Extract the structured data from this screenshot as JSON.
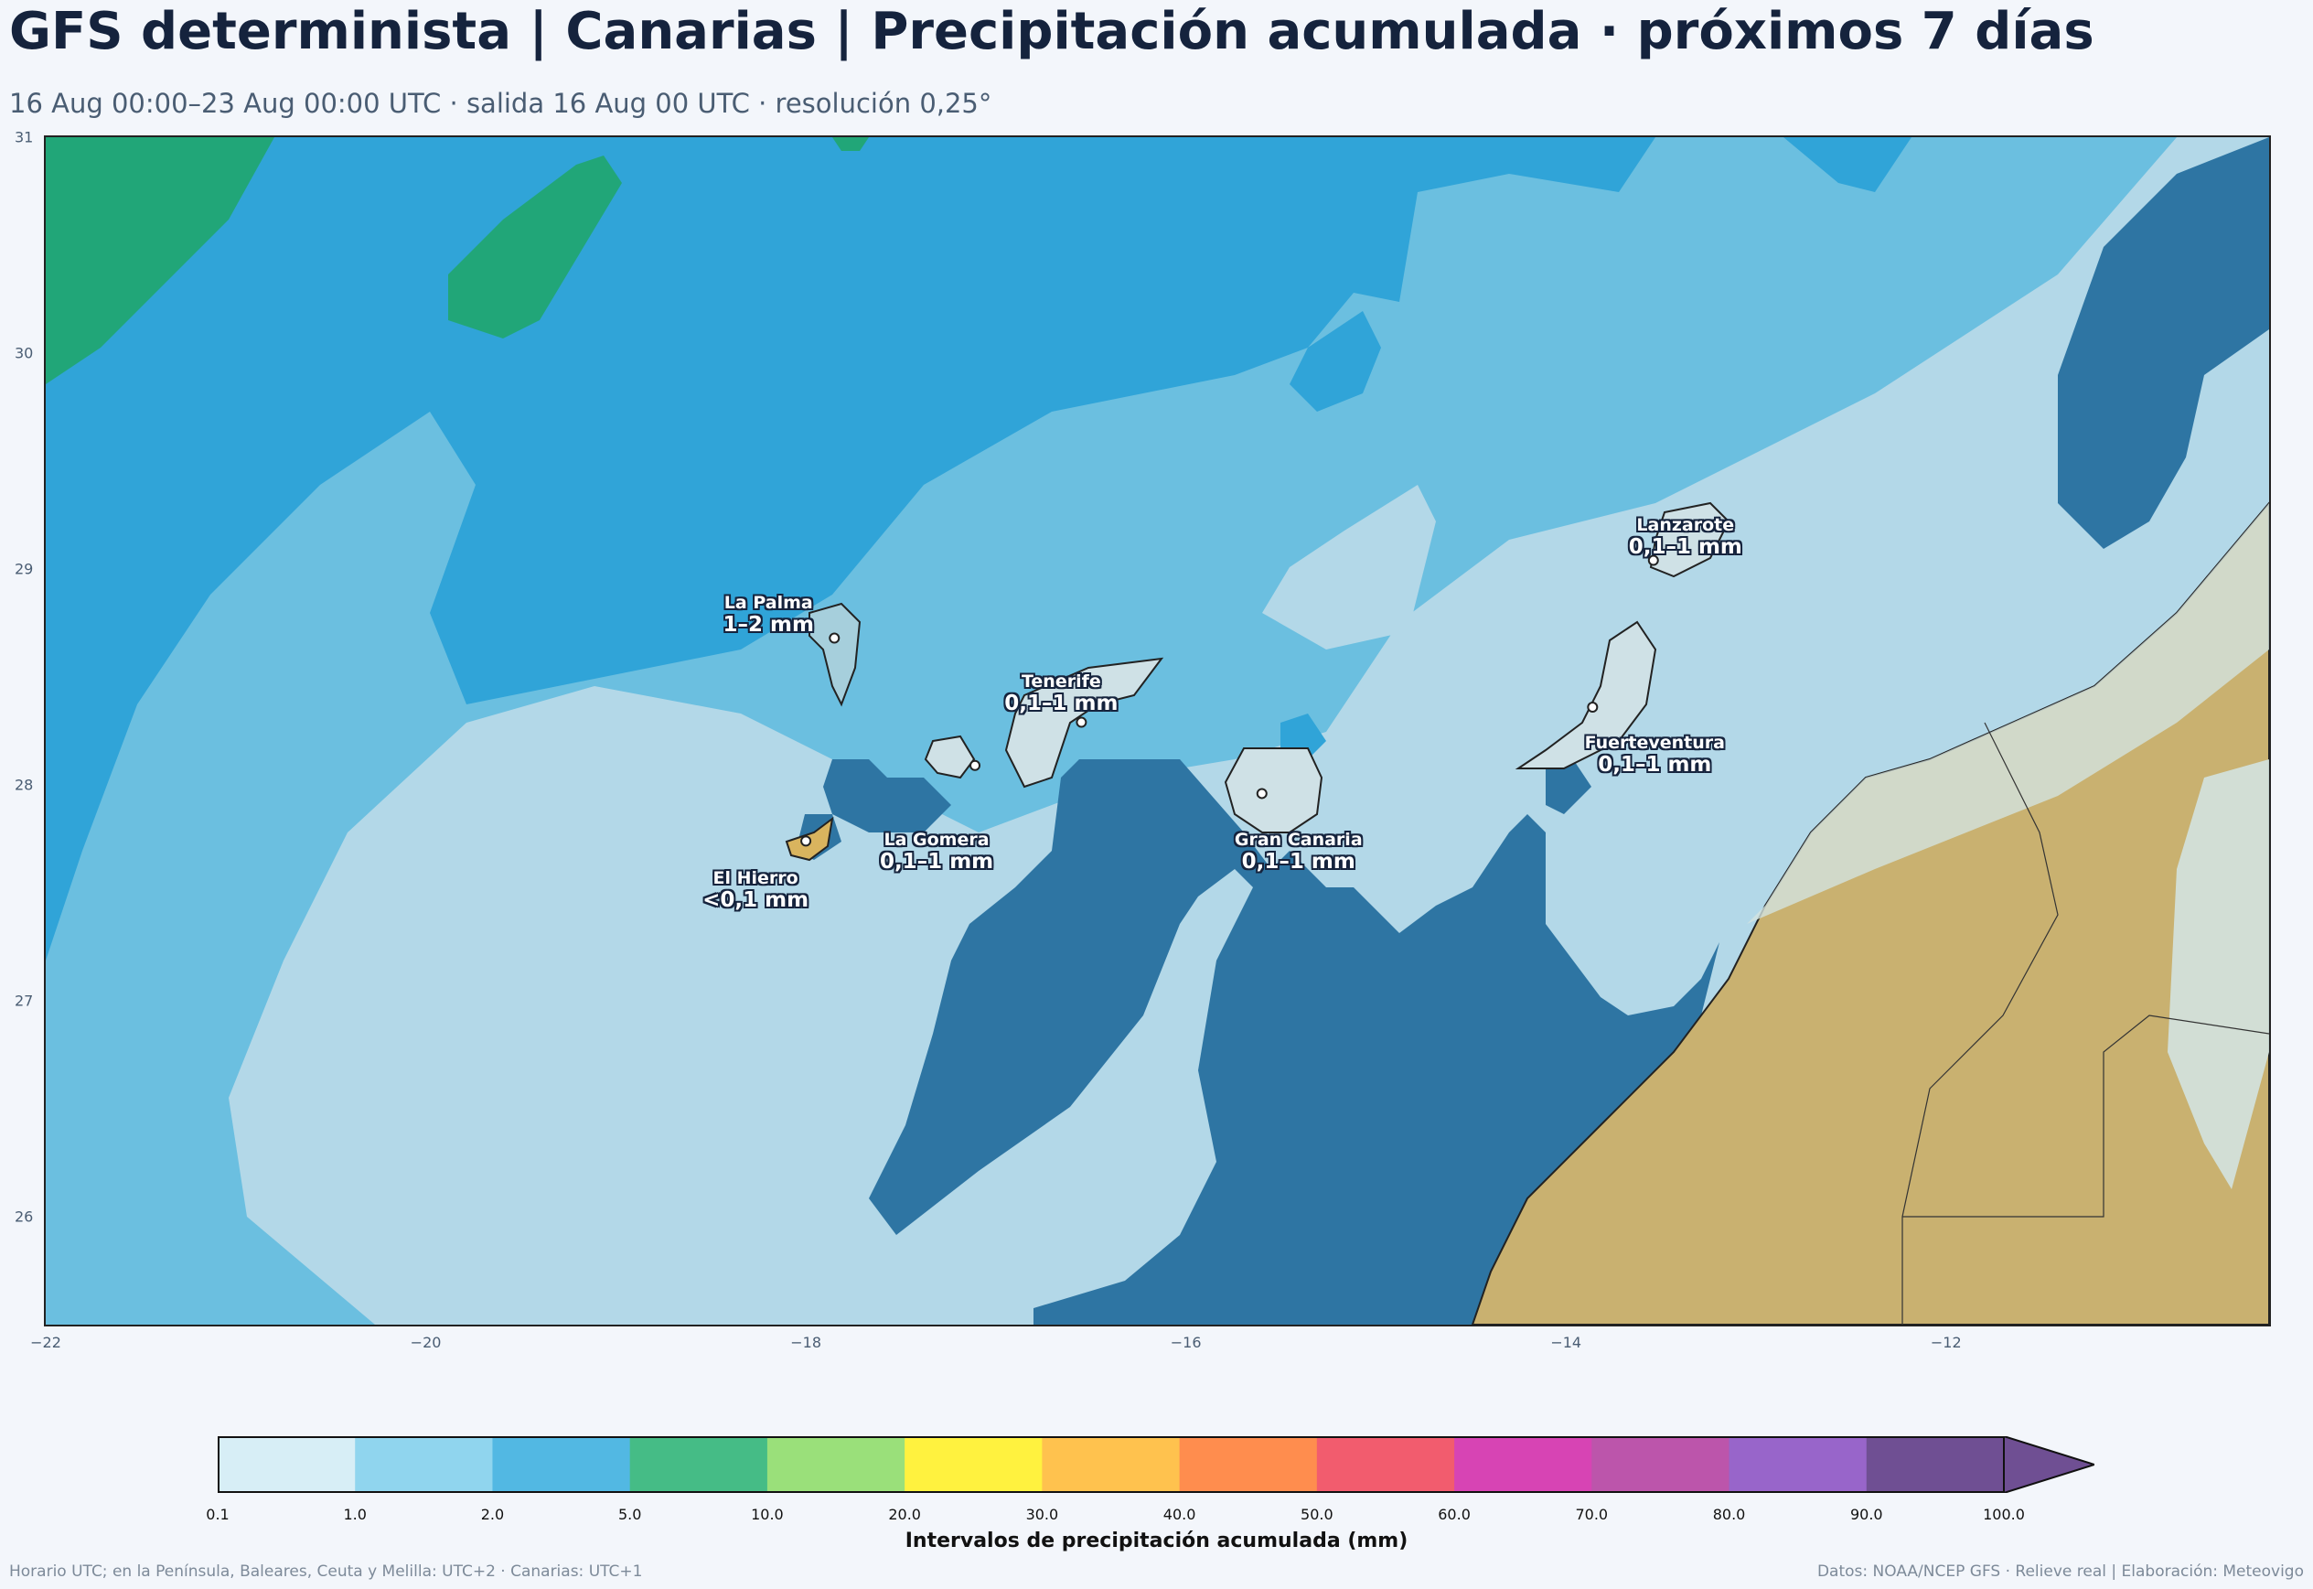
{
  "header": {
    "title": "GFS determinista | Canarias | Precipitación acumulada · próximos 7 días",
    "subtitle": "16 Aug 00:00–23 Aug 00:00 UTC · salida 16 Aug 00 UTC · resolución 0,25°"
  },
  "map": {
    "lon_range": [
      -22,
      -10.3
    ],
    "lat_range": [
      25.5,
      31
    ],
    "x_ticks": [
      "−22",
      "−20",
      "−18",
      "−16",
      "−14",
      "−12"
    ],
    "y_ticks": [
      "31",
      "30",
      "29",
      "28",
      "27",
      "26"
    ],
    "colors": {
      "c01": "#b3d8e8",
      "c1": "#6bbfe0",
      "c2": "#30a4d8",
      "c5": "#21a678",
      "dark": "#2e75a3",
      "land": "#c9b170",
      "island": "#cfe1e6",
      "coast": "#222222"
    },
    "islands": [
      {
        "name": "La Palma",
        "value": "1–2 mm",
        "lon": -17.85,
        "lat": 28.68
      },
      {
        "name": "Tenerife",
        "value": "0,1–1 mm",
        "lon": -16.55,
        "lat": 28.29
      },
      {
        "name": "La Gomera",
        "value": "0,1–1 mm",
        "lon": -17.11,
        "lat": 28.09
      },
      {
        "name": "El Hierro",
        "value": "<0,1 mm",
        "lon": -18.0,
        "lat": 27.74
      },
      {
        "name": "Gran Canaria",
        "value": "0,1–1 mm",
        "lon": -15.6,
        "lat": 27.96
      },
      {
        "name": "Lanzarote",
        "value": "0,1–1 mm",
        "lon": -13.54,
        "lat": 29.04
      },
      {
        "name": "Fuerteventura",
        "value": "0,1–1 mm",
        "lon": -13.86,
        "lat": 28.36
      }
    ]
  },
  "colorbar": {
    "label": "Intervalos de precipitación acumulada (mm)",
    "ticks": [
      "0.1",
      "1.0",
      "2.0",
      "5.0",
      "10.0",
      "20.0",
      "30.0",
      "40.0",
      "50.0",
      "60.0",
      "70.0",
      "80.0",
      "90.0",
      "100.0"
    ],
    "colors": [
      "#d7eef6",
      "#90d5ee",
      "#52b8e3",
      "#45bc86",
      "#9ae07a",
      "#fff23f",
      "#ffc24e",
      "#ff8d4e",
      "#f25c6e",
      "#d744b4",
      "#bc55ab",
      "#9865ca",
      "#6f4f93"
    ],
    "extend_color": "#6f4f93"
  },
  "footer": {
    "left": "Horario UTC; en la Península, Baleares, Ceuta y Melilla: UTC+2 · Canarias: UTC+1",
    "right": "Datos: NOAA/NCEP GFS · Relieve real | Elaboración: Meteovigo"
  }
}
